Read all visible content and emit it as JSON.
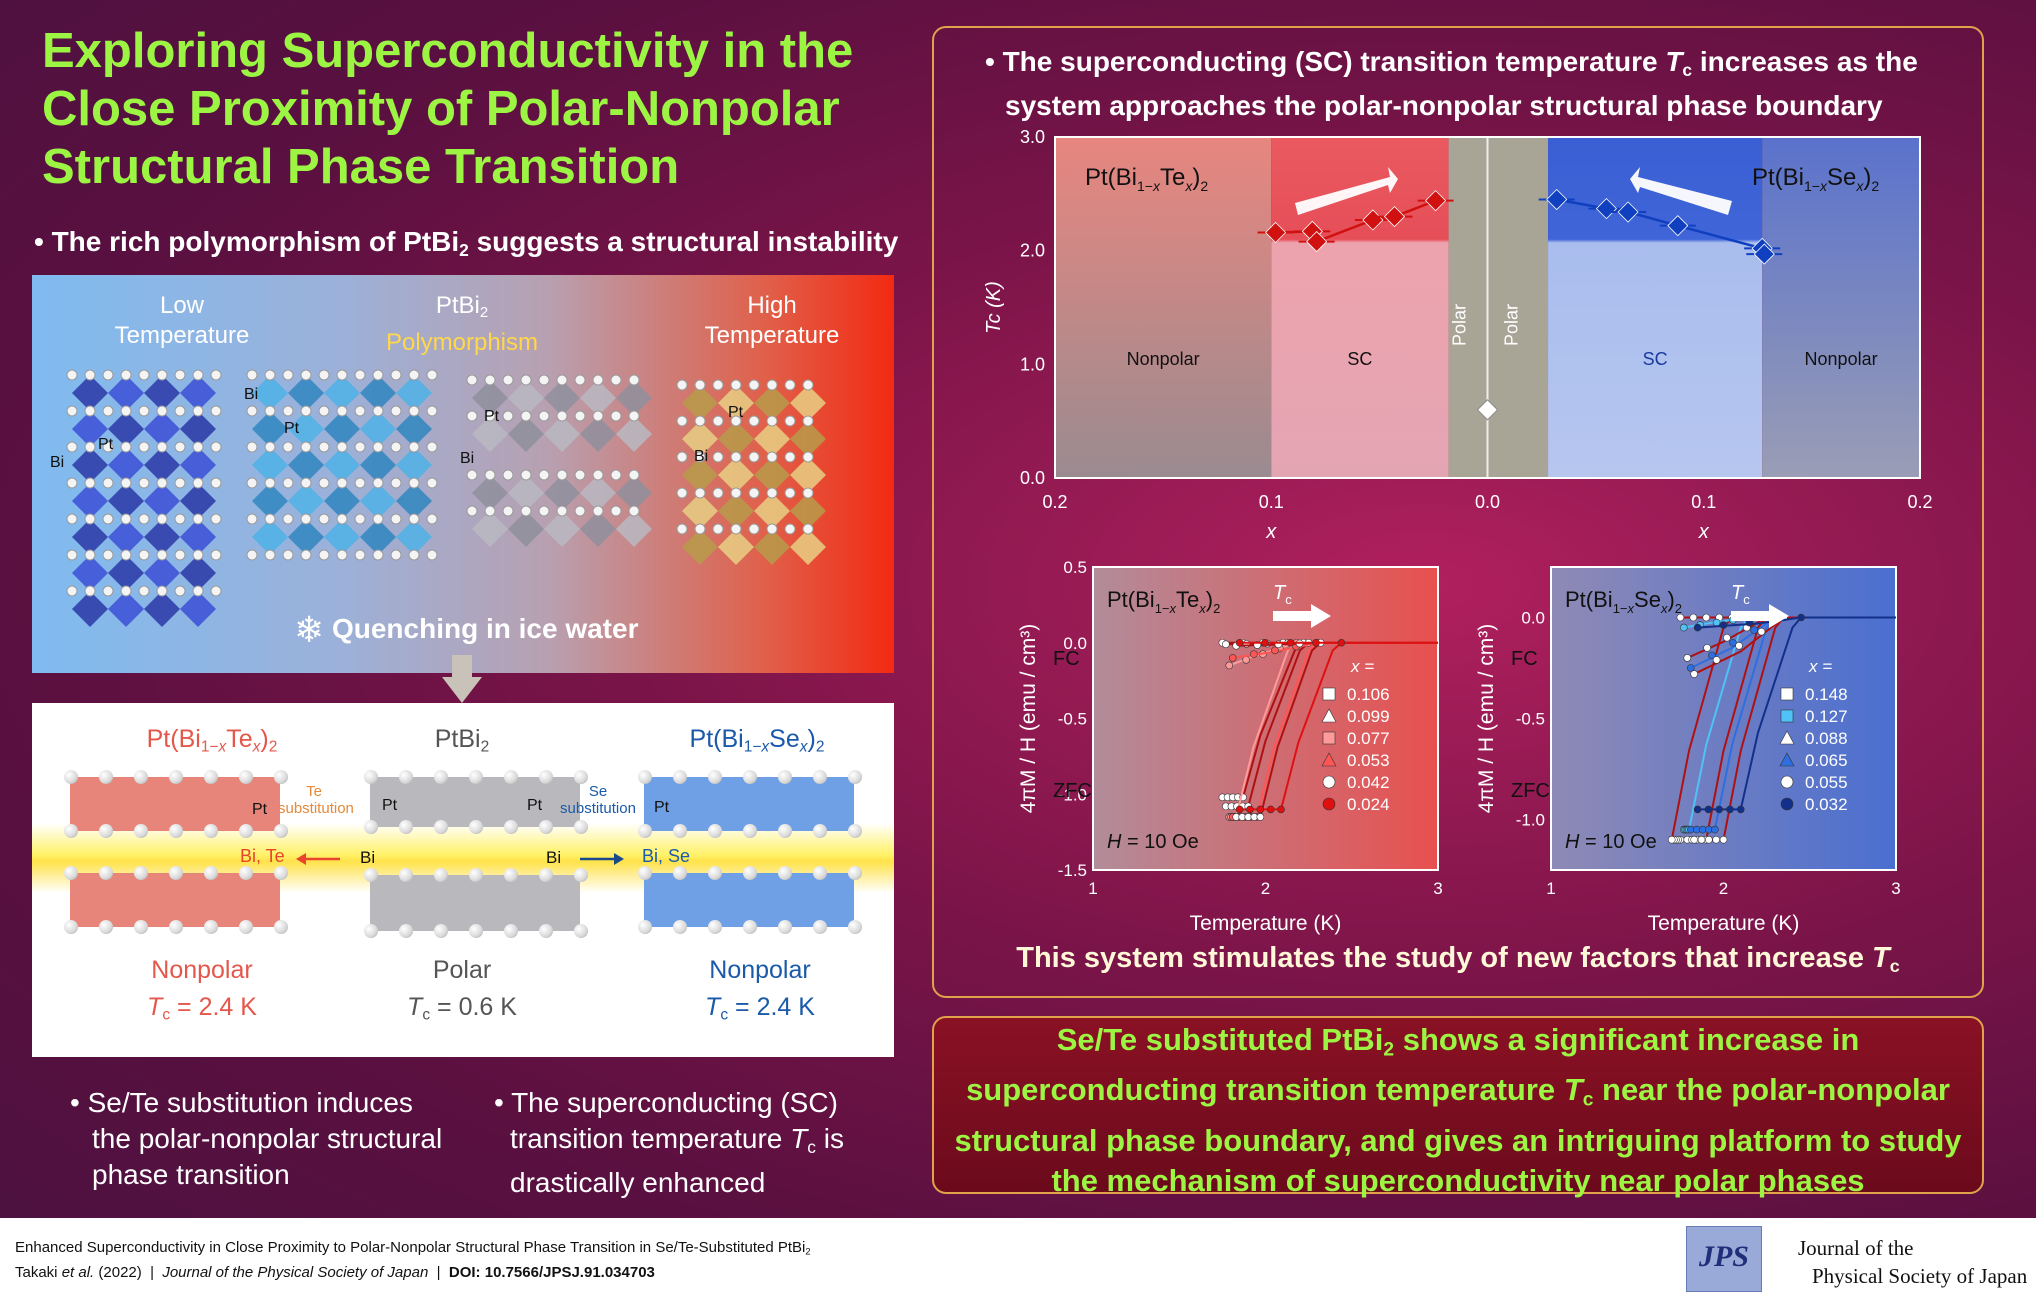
{
  "title": {
    "line1": "Exploring Superconductivity in the",
    "line2": "Close Proximity of Polar-Nonpolar",
    "line3": "Structural Phase Transition"
  },
  "left": {
    "bullet1": "• The rich polymorphism of PtBi",
    "bullet1_sub": "2",
    "bullet1_end": " suggests a structural instability",
    "low_temp": [
      "Low",
      "Temperature"
    ],
    "ptbi2": "PtBi",
    "ptbi2_sub": "2",
    "polymorphism": "Polymorphism",
    "high_temp": [
      "High",
      "Temperature"
    ],
    "atom_labels": {
      "bi": "Bi",
      "pt": "Pt"
    },
    "quench": "Quenching in ice water",
    "subst": {
      "te_compound": "Pt(Bi1−xTex)2",
      "parent": "PtBi2",
      "se_compound": "Pt(Bi1−xSex)2",
      "te_sub": [
        "Te",
        "substitution"
      ],
      "se_sub": [
        "Se",
        "substitution"
      ],
      "bi_te": "Bi, Te",
      "bi_se": "Bi, Se",
      "bi": "Bi",
      "pt": "Pt",
      "nonpolar_left": "Nonpolar",
      "polar": "Polar",
      "nonpolar_right": "Nonpolar",
      "tc_left": " = 2.4 K",
      "tc_mid": " = 0.6 K",
      "tc_right": " = 2.4 K"
    },
    "bullet2": [
      "• Se/Te substitution induces",
      "the polar-nonpolar structural",
      "phase transition"
    ],
    "bullet3": [
      "• The superconducting (SC)",
      "transition temperature ",
      " is",
      "drastically enhanced"
    ]
  },
  "right": {
    "bullet_line1": "• The superconducting (SC) transition temperature ",
    "bullet_line1_end": " increases as the",
    "bullet_line2": "system approaches the polar-nonpolar structural phase boundary",
    "stimulate": "This system stimulates the study of new factors that increase "
  },
  "conclusion": {
    "line1a": "Se/Te substituted PtBi",
    "line1b": " shows a significant increase in",
    "line2a": "superconducting transition temperature ",
    "line2b": " near the polar-nonpolar",
    "line3": "structural phase boundary, and gives an intriguing platform to study",
    "line4": "the mechanism of superconductivity near polar phases"
  },
  "footer": {
    "cite_title": "Enhanced Superconductivity in Close Proximity to Polar-Nonpolar Structural Phase Transition in Se/Te-Substituted PtBi",
    "cite_title_sub": "2",
    "authors": "Takaki ",
    "etal": "et al.",
    "year": " (2022)  |  ",
    "journal": "Journal of the Physical Society of Japan",
    "sep": "  |  ",
    "doi": "DOI: 10.7566/JPSJ.91.034703",
    "logo": "JPS",
    "journal_name": [
      "Journal of the",
      "Physical Society of Japan"
    ]
  },
  "chart_data": [
    {
      "type": "scatter",
      "title": "",
      "ylabel": "Tc (K)",
      "xlabel": "x",
      "ylim": [
        0,
        3
      ],
      "yticks": [
        "0.0",
        "1.0",
        "2.0",
        "3.0"
      ],
      "xticks": [
        "0.2",
        "0.1",
        "0.0",
        "0.1",
        "0.2"
      ],
      "region_labels": [
        "Nonpolar",
        "SC",
        "Polar",
        "Polar",
        "SC",
        "Nonpolar"
      ],
      "series": [
        {
          "name": "Pt(Bi1−xTex)2",
          "x": [
            0.098,
            0.081,
            0.079,
            0.053,
            0.043,
            0.024
          ],
          "y": [
            2.16,
            2.17,
            2.08,
            2.27,
            2.3,
            2.44
          ]
        },
        {
          "name": "Pt(Bi1−xSex)2",
          "x": [
            0.032,
            0.055,
            0.065,
            0.088,
            0.127,
            0.128
          ],
          "y": [
            2.45,
            2.37,
            2.34,
            2.22,
            2.02,
            1.97
          ]
        },
        {
          "name": "PtBi2",
          "x": [
            0.0
          ],
          "y": [
            0.6
          ]
        }
      ]
    },
    {
      "type": "line",
      "title": "Pt(Bi1−xTex)2",
      "xlabel": "Temperature (K)",
      "ylabel": "4πM / H (emu / cm³)",
      "xlim": [
        1,
        3
      ],
      "ylim": [
        -1.5,
        0.5
      ],
      "annotations": [
        "FC",
        "ZFC",
        "H = 10 Oe",
        "Tc"
      ],
      "legend_title": "x =",
      "series": [
        {
          "name": "0.106",
          "color": "#ffffff",
          "onset": 2.22,
          "zfc": -1.02,
          "fc": 0.0
        },
        {
          "name": "0.099",
          "color": "#ffffff",
          "onset": 2.25,
          "zfc": -1.08,
          "fc": -0.01
        },
        {
          "name": "0.077",
          "color": "#ff9a9a",
          "onset": 2.18,
          "zfc": -1.15,
          "fc": -0.15
        },
        {
          "name": "0.053",
          "color": "#ff5555",
          "onset": 2.3,
          "zfc": -1.15,
          "fc": -0.1
        },
        {
          "name": "0.042",
          "color": "#ffffff",
          "onset": 2.32,
          "zfc": -1.15,
          "fc": -0.02
        },
        {
          "name": "0.024",
          "color": "#e01010",
          "onset": 2.44,
          "zfc": -1.1,
          "fc": 0.0
        }
      ]
    },
    {
      "type": "line",
      "title": "Pt(Bi1−xSex)2",
      "xlabel": "Temperature (K)",
      "ylabel": "4πM / H (emu / cm³)",
      "xlim": [
        1,
        3
      ],
      "ylim": [
        -1.25,
        0.25
      ],
      "annotations": [
        "FC",
        "ZFC",
        "H = 10 Oe",
        "Tc"
      ],
      "legend_title": "x =",
      "series": [
        {
          "name": "0.148",
          "color": "#ffffff",
          "onset": 2.05,
          "zfc": -1.1,
          "fc": 0.0
        },
        {
          "name": "0.127",
          "color": "#4fc3f7",
          "onset": 2.15,
          "zfc": -1.05,
          "fc": -0.05
        },
        {
          "name": "0.088",
          "color": "#ffffff",
          "onset": 2.25,
          "zfc": -1.1,
          "fc": -0.2
        },
        {
          "name": "0.065",
          "color": "#2d6fe0",
          "onset": 2.3,
          "zfc": -1.05,
          "fc": -0.25
        },
        {
          "name": "0.055",
          "color": "#ffffff",
          "onset": 2.35,
          "zfc": -1.1,
          "fc": -0.28
        },
        {
          "name": "0.032",
          "color": "#12308a",
          "onset": 2.45,
          "zfc": -0.95,
          "fc": -0.05
        }
      ]
    }
  ]
}
